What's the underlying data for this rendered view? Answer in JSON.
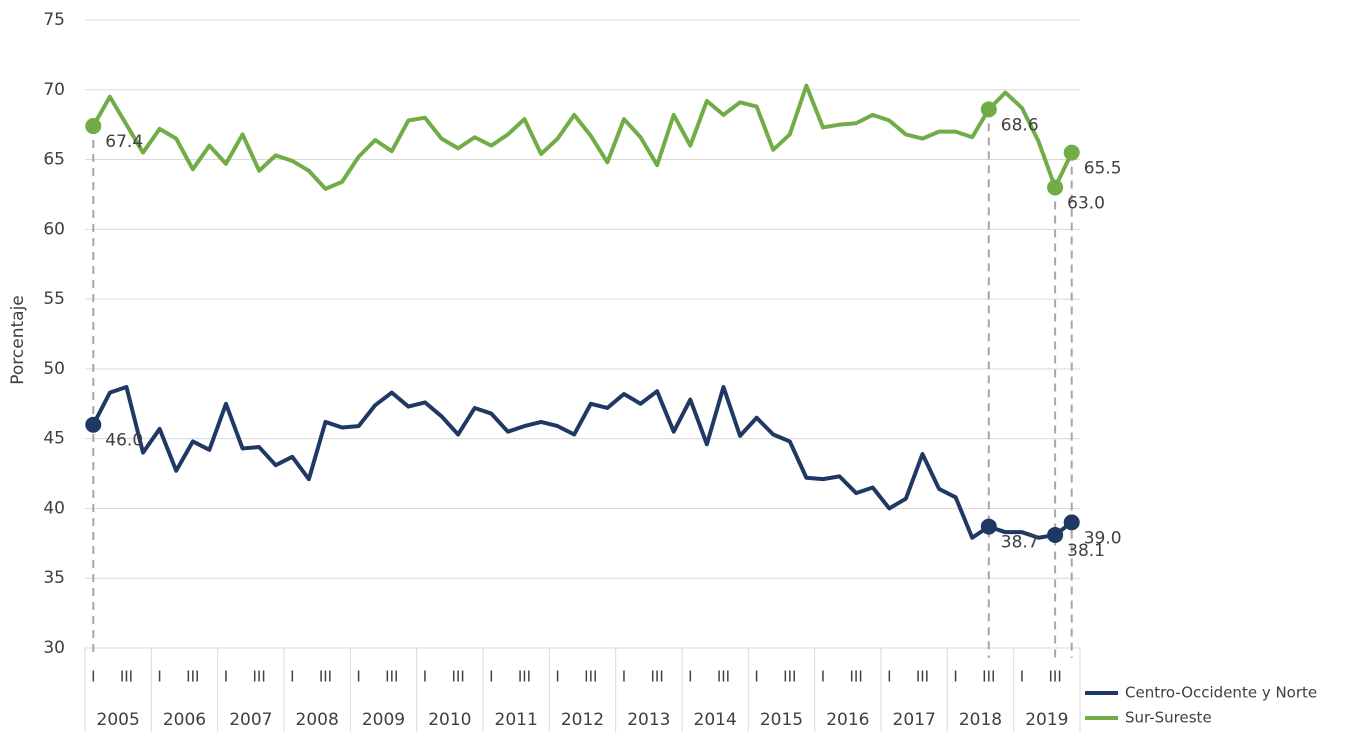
{
  "chart_data": {
    "type": "line",
    "y_label": "Porcentaje",
    "categories": [
      "I",
      null,
      "III",
      null,
      "I",
      null,
      "III",
      null,
      "I",
      null,
      "III",
      null,
      "I",
      null,
      "III",
      null,
      "I",
      null,
      "III",
      null,
      "I",
      null,
      "III",
      null,
      "I",
      null,
      "III",
      null,
      "I",
      null,
      "III",
      null,
      "I",
      null,
      "III",
      null,
      "I",
      null,
      "III",
      null,
      "I",
      null,
      "III",
      null,
      "I",
      null,
      "III",
      null,
      "I",
      null,
      "III",
      null,
      "I",
      null,
      "III",
      null,
      "I",
      null,
      "III",
      null
    ],
    "years": [
      "2005",
      "2006",
      "2007",
      "2008",
      "2009",
      "2010",
      "2011",
      "2012",
      "2013",
      "2014",
      "2015",
      "2016",
      "2017",
      "2018",
      "2019"
    ],
    "series": [
      {
        "name": "Centro-Occidente y Norte",
        "color": "#1f3864",
        "values": [
          46.0,
          48.3,
          48.7,
          44.0,
          45.7,
          42.7,
          44.8,
          44.2,
          47.5,
          44.3,
          44.4,
          43.1,
          43.7,
          42.1,
          46.2,
          45.8,
          45.9,
          47.4,
          48.3,
          47.3,
          47.6,
          46.6,
          45.3,
          47.2,
          46.8,
          45.5,
          45.9,
          46.2,
          45.9,
          45.3,
          47.5,
          47.2,
          48.2,
          47.5,
          48.4,
          45.5,
          47.8,
          44.6,
          48.7,
          45.2,
          46.5,
          45.3,
          44.8,
          42.2,
          42.1,
          42.3,
          41.1,
          41.5,
          40.0,
          40.7,
          43.9,
          41.4,
          40.8,
          37.9,
          38.7,
          38.3,
          38.3,
          37.9,
          38.1,
          39.0
        ],
        "value_labels": [
          "46.0",
          null,
          null,
          null,
          null,
          null,
          null,
          null,
          null,
          null,
          null,
          null,
          null,
          null,
          null,
          null,
          null,
          null,
          null,
          null,
          null,
          null,
          null,
          null,
          null,
          null,
          null,
          null,
          null,
          null,
          null,
          null,
          null,
          null,
          null,
          null,
          null,
          null,
          null,
          null,
          null,
          null,
          null,
          null,
          null,
          null,
          null,
          null,
          null,
          null,
          null,
          null,
          null,
          null,
          "38.7",
          null,
          null,
          null,
          "38.1",
          "39.0"
        ]
      },
      {
        "name": "Sur-Sureste",
        "color": "#70ad47",
        "values": [
          67.4,
          69.5,
          67.5,
          65.5,
          67.2,
          66.5,
          64.3,
          66.0,
          64.7,
          66.8,
          64.2,
          65.3,
          64.9,
          64.2,
          62.9,
          63.4,
          65.2,
          66.4,
          65.6,
          67.8,
          68.0,
          66.5,
          65.8,
          66.6,
          66.0,
          66.8,
          67.9,
          65.4,
          66.5,
          68.2,
          66.7,
          64.8,
          67.9,
          66.6,
          64.6,
          68.2,
          66.0,
          69.2,
          68.2,
          69.1,
          68.8,
          65.7,
          66.8,
          70.3,
          67.3,
          67.5,
          67.6,
          68.2,
          67.8,
          66.8,
          66.5,
          67.0,
          67.0,
          66.6,
          68.6,
          69.8,
          68.7,
          66.3,
          63.0,
          65.5
        ],
        "value_labels": [
          "67.4",
          null,
          null,
          null,
          null,
          null,
          null,
          null,
          null,
          null,
          null,
          null,
          null,
          null,
          null,
          null,
          null,
          null,
          null,
          null,
          null,
          null,
          null,
          null,
          null,
          null,
          null,
          null,
          null,
          null,
          null,
          null,
          null,
          null,
          null,
          null,
          null,
          null,
          null,
          null,
          null,
          null,
          null,
          null,
          null,
          null,
          null,
          null,
          null,
          null,
          null,
          null,
          null,
          null,
          "68.6",
          null,
          null,
          null,
          "63.0",
          "65.5"
        ]
      }
    ],
    "ylim": [
      30,
      75
    ],
    "yticks": [
      30,
      35,
      40,
      45,
      50,
      55,
      60,
      65,
      70,
      75
    ],
    "grid": true
  }
}
